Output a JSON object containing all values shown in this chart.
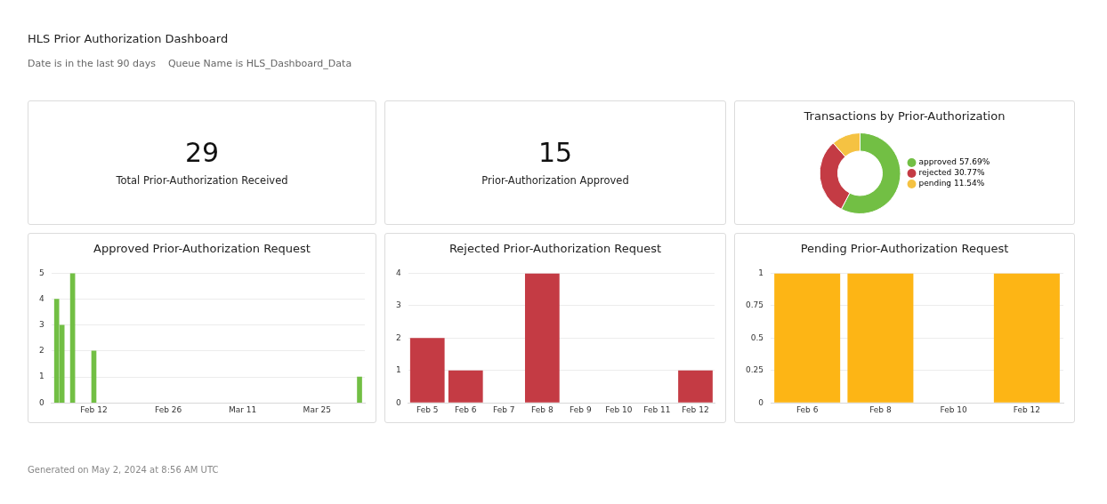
{
  "chart_data": [
    {
      "type": "other",
      "title": "HLS Prior Authorization Dashboard",
      "subtitle": "Date is in the last 90 days    Queue Name is HLS_Dashboard_Data",
      "annotations": [
        "Generated on May 2, 2024 at 8:56 AM UTC"
      ]
    },
    {
      "type": "other",
      "title": "Total Prior-Authorization Received",
      "values": [
        29
      ],
      "data_labels": true
    },
    {
      "type": "other",
      "title": "Prior-Authorization Approved",
      "values": [
        15
      ],
      "data_labels": true
    },
    {
      "type": "donut",
      "title": "Transactions by Prior-Authorization",
      "categories": [
        "approved",
        "rejected",
        "pending"
      ],
      "values": [
        57.69,
        30.77,
        11.54
      ],
      "value_labels": [
        "57.69%",
        "30.77%",
        "11.54%"
      ],
      "colors": [
        "#72bf44",
        "#c43b44",
        "#f5c242"
      ],
      "legend": "right"
    },
    {
      "type": "bar",
      "title": "Approved Prior-Authorization Request",
      "x": [
        "2024-02-05",
        "2024-02-06",
        "2024-02-08",
        "2024-02-12",
        "2024-04-02"
      ],
      "values": [
        4,
        3,
        5,
        2,
        1
      ],
      "color": "#72bf44",
      "xlim": [
        "2024-02-04",
        "2024-04-03"
      ],
      "xticks": [
        {
          "value": "2024-02-12",
          "label": "Feb 12"
        },
        {
          "value": "2024-02-26",
          "label": "Feb 26"
        },
        {
          "value": "2024-03-11",
          "label": "Mar 11"
        },
        {
          "value": "2024-03-25",
          "label": "Mar 25"
        }
      ],
      "ylim": [
        0,
        5
      ],
      "yticks": [
        0,
        1,
        2,
        3,
        4,
        5
      ],
      "grid": "y",
      "legend": false
    },
    {
      "type": "bar",
      "title": "Rejected Prior-Authorization Request",
      "categories": [
        "Feb 5",
        "Feb 6",
        "Feb 7",
        "Feb 8",
        "Feb 9",
        "Feb 10",
        "Feb 11",
        "Feb 12"
      ],
      "values": [
        2,
        1,
        0,
        4,
        0,
        0,
        0,
        1
      ],
      "color": "#c43b44",
      "ylim": [
        0,
        4
      ],
      "yticks": [
        0,
        1,
        2,
        3,
        4
      ],
      "grid": "y",
      "legend": false
    },
    {
      "type": "bar",
      "title": "Pending Prior-Authorization Request",
      "categories": [
        "Feb 6",
        "Feb 8",
        "Feb 10",
        "Feb 12"
      ],
      "values": [
        1,
        1,
        0,
        1
      ],
      "color": "#fdb515",
      "ylim": [
        0,
        1
      ],
      "yticks": [
        0,
        0.25,
        0.5,
        0.75,
        1
      ],
      "grid": "y",
      "legend": false
    }
  ]
}
